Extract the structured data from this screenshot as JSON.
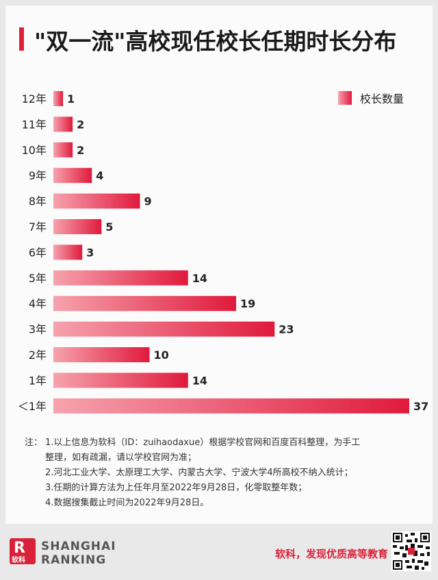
{
  "title": "\"双一流\"高校现任校长任期时长分布",
  "chart_data": {
    "type": "bar",
    "orientation": "horizontal",
    "categories": [
      "12年",
      "11年",
      "10年",
      "9年",
      "8年",
      "7年",
      "6年",
      "5年",
      "4年",
      "3年",
      "2年",
      "1年",
      "＜1年"
    ],
    "series": [
      {
        "name": "校长数量",
        "values": [
          1,
          2,
          2,
          4,
          9,
          5,
          3,
          14,
          19,
          23,
          10,
          14,
          37
        ]
      }
    ],
    "xlim": [
      0,
      37
    ],
    "grid": false,
    "legend": "top-right",
    "bar_color_start": "#f6a3ae",
    "bar_color_end": "#e01a3c"
  },
  "notes": {
    "label": "注：",
    "lines": [
      "1.以上信息为软科（ID：zuihaodaxue）根据学校官网和百度百科整理，为手工",
      "整理，如有疏漏，请以学校官网为准；",
      "2.河北工业大学、太原理工大学、内蒙古大学、宁波大学4所高校不纳入统计；",
      "3.任期的计算方法为上任年月至2022年9月28日，化零取整年数；",
      "4.数据搜集截止时间为2022年9月28日。"
    ]
  },
  "footer": {
    "logo_mark": "R",
    "logo_text": "软科",
    "brand_line1": "SHANGHAI",
    "brand_line2": "RANKING",
    "slogan": "软科，发现优质高等教育",
    "qr_icon": "qr-code-icon"
  }
}
